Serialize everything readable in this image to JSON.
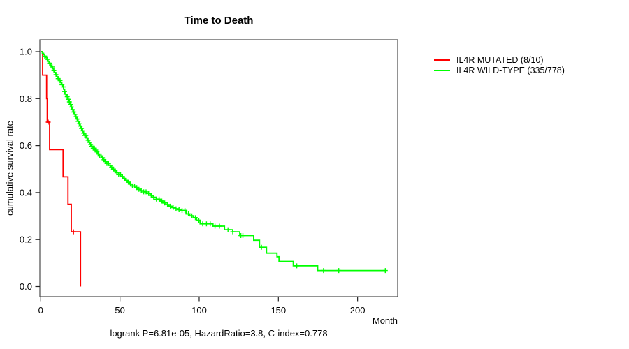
{
  "chart": {
    "title": "Time to Death",
    "footer": "logrank P=6.81e-05, HazardRatio=3.8, C-index=0.778"
  },
  "axes": {
    "x": {
      "unit": "Month",
      "ticks": [
        0,
        50,
        100,
        150,
        200
      ],
      "range": [
        0,
        225
      ]
    },
    "y": {
      "label": "cumulative survival rate",
      "tick_labels": [
        "0.0",
        "0.2",
        "0.4",
        "0.6",
        "0.8",
        "1.0"
      ],
      "tick_values": [
        0,
        0.2,
        0.4,
        0.6,
        0.8,
        1.0
      ],
      "range": [
        0,
        1
      ]
    }
  },
  "legend": {
    "items": [
      {
        "label": "IL4R MUTATED (8/10)",
        "color": "#ff0000",
        "slug": "il4r-mutated"
      },
      {
        "label": "IL4R WILD-TYPE (335/778)",
        "color": "#00ff00",
        "slug": "il4r-wild-type"
      }
    ]
  },
  "layout_colors": {
    "box": "#4a4a4a",
    "tick": "#222222",
    "text": "#000000",
    "background": "#ffffff"
  },
  "chart_data": {
    "type": "line",
    "subtype": "kaplan-meier-step",
    "title": "Time to Death",
    "xlabel": "Month",
    "ylabel": "cumulative survival rate",
    "xlim": [
      0,
      225
    ],
    "ylim": [
      0,
      1
    ],
    "grid": false,
    "legend_position": "right-outside",
    "series": [
      {
        "name": "IL4R MUTATED (8/10)",
        "slug": "il4r-mutated",
        "color": "#ff0000",
        "events_total": "8/10",
        "steps": [
          [
            0,
            1.0
          ],
          [
            1.2,
            0.9
          ],
          [
            3.7,
            0.8
          ],
          [
            4.1,
            0.7
          ],
          [
            5.6,
            0.583
          ],
          [
            14.1,
            0.467
          ],
          [
            17.2,
            0.35
          ],
          [
            19.3,
            0.233
          ],
          [
            25.1,
            0.0
          ]
        ],
        "end_time": 25.1,
        "censor_times": [
          4.7,
          20.7
        ]
      },
      {
        "name": "IL4R WILD-TYPE (335/778)",
        "slug": "il4r-wild-type",
        "color": "#00ff00",
        "events_total": "335/778",
        "steps": [
          [
            0,
            1.0
          ],
          [
            1,
            0.993
          ],
          [
            1.8,
            0.987
          ],
          [
            2.5,
            0.981
          ],
          [
            3.2,
            0.974
          ],
          [
            3.9,
            0.967
          ],
          [
            4.6,
            0.959
          ],
          [
            5.3,
            0.951
          ],
          [
            6,
            0.943
          ],
          [
            6.7,
            0.935
          ],
          [
            7.4,
            0.927
          ],
          [
            8.1,
            0.919
          ],
          [
            8.8,
            0.911
          ],
          [
            9.5,
            0.902
          ],
          [
            10.2,
            0.893
          ],
          [
            10.9,
            0.885
          ],
          [
            11.6,
            0.877
          ],
          [
            12.3,
            0.868
          ],
          [
            13,
            0.859
          ],
          [
            13.7,
            0.85
          ],
          [
            14.4,
            0.84
          ],
          [
            15.1,
            0.83
          ],
          [
            15.8,
            0.819
          ],
          [
            16.5,
            0.808
          ],
          [
            17.2,
            0.797
          ],
          [
            17.9,
            0.786
          ],
          [
            18.6,
            0.775
          ],
          [
            19.3,
            0.764
          ],
          [
            20,
            0.753
          ],
          [
            20.7,
            0.743
          ],
          [
            21.4,
            0.733
          ],
          [
            22.1,
            0.723
          ],
          [
            22.8,
            0.713
          ],
          [
            23.5,
            0.703
          ],
          [
            24.2,
            0.693
          ],
          [
            24.9,
            0.683
          ],
          [
            25.6,
            0.673
          ],
          [
            26.3,
            0.663
          ],
          [
            27,
            0.653
          ],
          [
            27.8,
            0.643
          ],
          [
            28.6,
            0.633
          ],
          [
            29.4,
            0.623
          ],
          [
            30.2,
            0.614
          ],
          [
            31.1,
            0.605
          ],
          [
            32,
            0.597
          ],
          [
            33,
            0.589
          ],
          [
            34,
            0.581
          ],
          [
            35,
            0.573
          ],
          [
            36.1,
            0.564
          ],
          [
            37.2,
            0.556
          ],
          [
            38.3,
            0.548
          ],
          [
            39.4,
            0.54
          ],
          [
            40.5,
            0.532
          ],
          [
            41.7,
            0.524
          ],
          [
            42.9,
            0.516
          ],
          [
            44.1,
            0.508
          ],
          [
            45.3,
            0.5
          ],
          [
            46.6,
            0.492
          ],
          [
            47.9,
            0.484
          ],
          [
            49.2,
            0.476
          ],
          [
            50.5,
            0.468
          ],
          [
            51.9,
            0.46
          ],
          [
            53.3,
            0.452
          ],
          [
            54.8,
            0.444
          ],
          [
            56.3,
            0.436
          ],
          [
            57.8,
            0.428
          ],
          [
            59.4,
            0.421
          ],
          [
            61,
            0.414
          ],
          [
            63,
            0.408
          ],
          [
            65,
            0.403
          ],
          [
            67,
            0.396
          ],
          [
            69,
            0.388
          ],
          [
            71,
            0.38
          ],
          [
            73,
            0.372
          ],
          [
            75,
            0.364
          ],
          [
            77,
            0.356
          ],
          [
            79,
            0.349
          ],
          [
            81,
            0.342
          ],
          [
            83,
            0.336
          ],
          [
            85,
            0.331
          ],
          [
            87,
            0.327
          ],
          [
            89,
            0.324
          ],
          [
            91.7,
            0.309
          ],
          [
            94,
            0.301
          ],
          [
            96.2,
            0.293
          ],
          [
            98.4,
            0.282
          ],
          [
            100.6,
            0.267
          ],
          [
            108.7,
            0.257
          ],
          [
            116,
            0.242
          ],
          [
            121.2,
            0.233
          ],
          [
            125.6,
            0.217
          ],
          [
            134.4,
            0.197
          ],
          [
            138.1,
            0.167
          ],
          [
            142.5,
            0.142
          ],
          [
            149.1,
            0.127
          ],
          [
            150.4,
            0.107
          ],
          [
            159.4,
            0.088
          ],
          [
            174.8,
            0.068
          ]
        ],
        "end_time": 217.6,
        "censor_times": [
          2.5,
          4.1,
          5.6,
          7.2,
          8.3,
          9.6,
          11.0,
          12.2,
          13.4,
          14.3,
          15.1,
          15.9,
          16.7,
          17.4,
          18.1,
          18.8,
          19.5,
          20.2,
          20.9,
          21.6,
          22.3,
          23.0,
          23.6,
          24.3,
          25.0,
          25.7,
          26.4,
          27.1,
          27.8,
          28.5,
          29.2,
          29.9,
          30.7,
          31.5,
          32.3,
          33.1,
          33.9,
          34.7,
          35.5,
          36.3,
          37.2,
          38.1,
          39.0,
          39.9,
          40.8,
          41.8,
          42.8,
          43.8,
          44.8,
          45.9,
          47.0,
          48.1,
          49.2,
          50.4,
          51.6,
          52.8,
          54.0,
          55.3,
          56.6,
          57.9,
          59.2,
          60.6,
          62.0,
          63.5,
          65.0,
          66.5,
          68.1,
          69.7,
          71.3,
          73.0,
          74.7,
          76.4,
          78.2,
          80.0,
          81.8,
          83.6,
          85.4,
          87.3,
          89.2,
          91.0,
          93.2,
          95.4,
          97.6,
          99.8,
          102.2,
          104.6,
          107.0,
          110.0,
          112.8,
          118.2,
          121.2,
          126.3,
          127.6,
          139.3,
          161.6,
          178.5,
          188.1,
          217.5
        ]
      }
    ]
  }
}
